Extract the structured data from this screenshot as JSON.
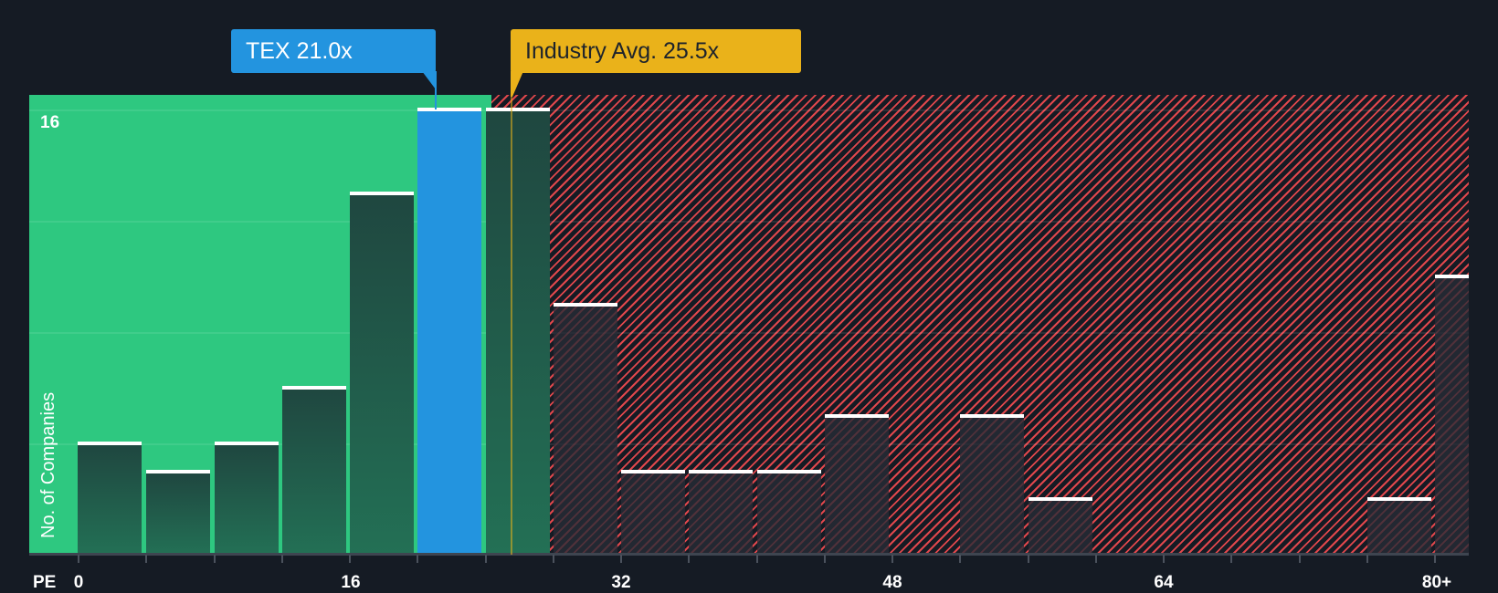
{
  "chart_data": {
    "type": "bar",
    "title": "",
    "xlabel": "PE",
    "ylabel": "No. of Companies",
    "x_ticks": [
      "0",
      "16",
      "32",
      "48",
      "64",
      "80+"
    ],
    "y_ticks": [
      "16"
    ],
    "ylim": [
      0,
      16.5
    ],
    "bin_width": 4,
    "categories": [
      "0-4",
      "4-8",
      "8-12",
      "12-16",
      "16-20",
      "20-24",
      "24-28",
      "28-32",
      "32-36",
      "36-40",
      "40-44",
      "44-48",
      "48-52",
      "52-56",
      "56-60",
      "60-64",
      "64-68",
      "68-72",
      "72-76",
      "76-80",
      "80+"
    ],
    "values": [
      4,
      3,
      4,
      6,
      13,
      16,
      16,
      9,
      3,
      3,
      3,
      5,
      0,
      5,
      2,
      0,
      0,
      0,
      0,
      2,
      10
    ],
    "highlight_index": 5,
    "grid": true,
    "annotations": [
      {
        "label": "TEX 21.0x",
        "value": 21.0,
        "color": "#2394df"
      },
      {
        "label": "Industry Avg. 25.5x",
        "value": 25.5,
        "color": "#eab21a"
      }
    ],
    "zones": [
      {
        "name": "below-average",
        "from": 0,
        "to": 25.5,
        "color": "#2ec880"
      },
      {
        "name": "above-average",
        "from": 25.5,
        "to": 84,
        "color": "#e0474c",
        "pattern": "hatched"
      }
    ]
  },
  "labels": {
    "company_callout": "TEX 21.0x",
    "industry_callout": "Industry Avg. 25.5x",
    "y_axis_title": "No. of Companies",
    "y_top_tick": "16",
    "x_axis_prefix": "PE",
    "x_ticks": [
      "0",
      "16",
      "32",
      "48",
      "64",
      "80+"
    ]
  },
  "colors": {
    "background": "#151b24",
    "green_zone": "#2ec880",
    "red_hatch": "#e0474c",
    "company_accent": "#2394df",
    "industry_accent": "#eab21a"
  }
}
